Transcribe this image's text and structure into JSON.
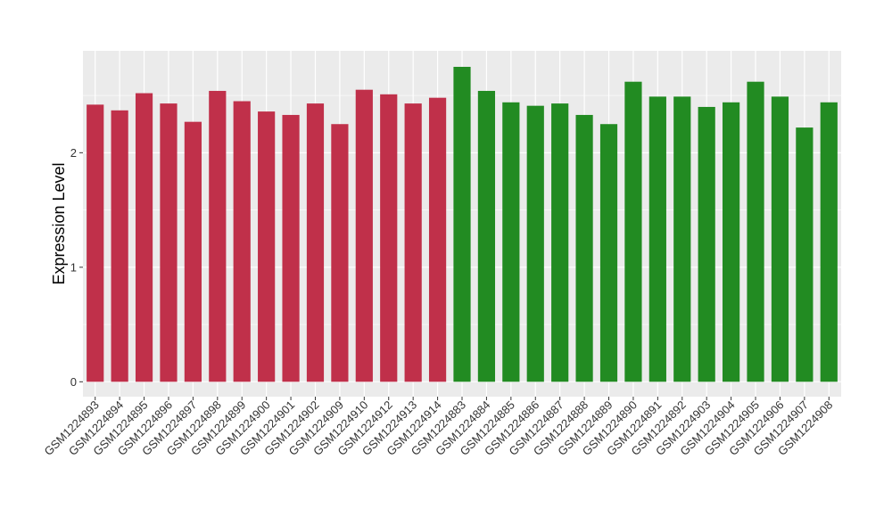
{
  "chart_data": {
    "type": "bar",
    "title": "",
    "xlabel": "",
    "ylabel": "Expression Level",
    "ylim": [
      -0.13,
      2.89
    ],
    "yticks": [
      0,
      1,
      2
    ],
    "grid": true,
    "legend": "none",
    "categories": [
      "GSM1224893",
      "GSM1224894",
      "GSM1224895",
      "GSM1224896",
      "GSM1224897",
      "GSM1224898",
      "GSM1224899",
      "GSM1224900",
      "GSM1224901",
      "GSM1224902",
      "GSM1224909",
      "GSM1224910",
      "GSM1224912",
      "GSM1224913",
      "GSM1224914",
      "GSM1224883",
      "GSM1224884",
      "GSM1224885",
      "GSM1224886",
      "GSM1224887",
      "GSM1224888",
      "GSM1224889",
      "GSM1224890",
      "GSM1224891",
      "GSM1224892",
      "GSM1224903",
      "GSM1224904",
      "GSM1224905",
      "GSM1224906",
      "GSM1224907",
      "GSM1224908"
    ],
    "values": [
      2.42,
      2.37,
      2.52,
      2.43,
      2.27,
      2.54,
      2.45,
      2.36,
      2.33,
      2.43,
      2.25,
      2.55,
      2.51,
      2.43,
      2.48,
      2.75,
      2.54,
      2.44,
      2.41,
      2.43,
      2.33,
      2.25,
      2.62,
      2.49,
      2.49,
      2.4,
      2.44,
      2.62,
      2.49,
      2.22,
      2.44
    ],
    "group_colors": [
      "#c0304a",
      "#c0304a",
      "#c0304a",
      "#c0304a",
      "#c0304a",
      "#c0304a",
      "#c0304a",
      "#c0304a",
      "#c0304a",
      "#c0304a",
      "#c0304a",
      "#c0304a",
      "#c0304a",
      "#c0304a",
      "#c0304a",
      "#228b22",
      "#228b22",
      "#228b22",
      "#228b22",
      "#228b22",
      "#228b22",
      "#228b22",
      "#228b22",
      "#228b22",
      "#228b22",
      "#228b22",
      "#228b22",
      "#228b22",
      "#228b22",
      "#228b22",
      "#228b22"
    ],
    "panel_background": "#ebebeb",
    "grid_color": "#ffffff"
  }
}
